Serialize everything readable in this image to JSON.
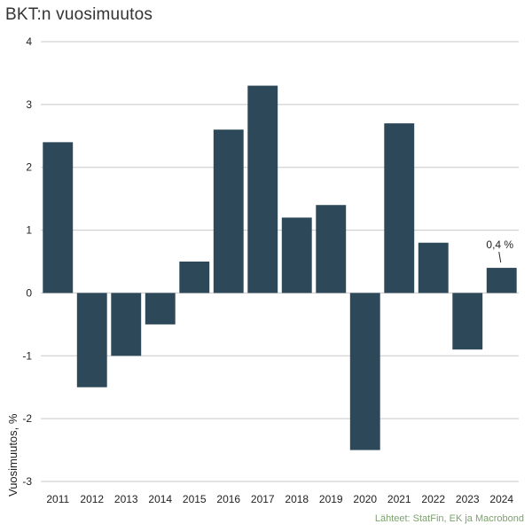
{
  "title": "BKT:n vuosimuutos",
  "source": "Lähteet: StatFin, EK ja Macrobond",
  "colors": {
    "bar": "#2d4858",
    "grid": "#c8c8c8",
    "source": "#7aa36a"
  },
  "chart_data": {
    "type": "bar",
    "title": "BKT:n vuosimuutos",
    "xlabel": "",
    "ylabel": "Vuosimuutos, %",
    "ylim": [
      -3,
      4
    ],
    "yticks": [
      4,
      3,
      2,
      1,
      0,
      -1,
      -2,
      -3
    ],
    "grid": true,
    "categories": [
      "2011",
      "2012",
      "2013",
      "2014",
      "2015",
      "2016",
      "2017",
      "2018",
      "2019",
      "2020",
      "2021",
      "2022",
      "2023",
      "2024"
    ],
    "values": [
      2.4,
      -1.5,
      -1.0,
      -0.5,
      0.5,
      2.6,
      3.3,
      1.2,
      1.4,
      -2.5,
      2.7,
      0.8,
      -0.9,
      0.4
    ],
    "annotation": {
      "category": "2024",
      "text": "0,4 %"
    }
  }
}
